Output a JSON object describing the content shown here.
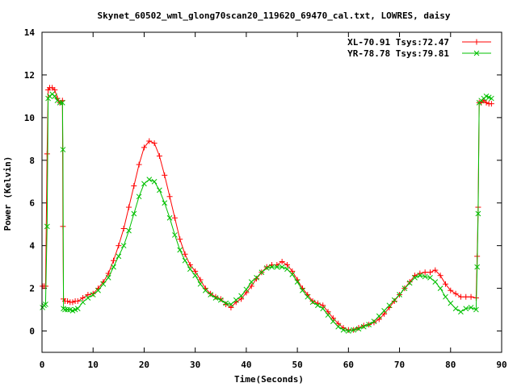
{
  "chart_data": {
    "type": "line",
    "title": "Skynet_60502_wml_glong70scan20_119620_69470_cal.txt, LOWRES, daisy",
    "xlabel": "Time(Seconds)",
    "ylabel": "Power (Kelvin)",
    "xlim": [
      0,
      90
    ],
    "ylim": [
      -1,
      14
    ],
    "xticks": [
      0,
      10,
      20,
      30,
      40,
      50,
      60,
      70,
      80,
      90
    ],
    "yticks": [
      0,
      2,
      4,
      6,
      8,
      10,
      12,
      14
    ],
    "grid": false,
    "legend_position": "top-right",
    "series": [
      {
        "name": "XL-70.91 Tsys:72.47",
        "color": "#ff0000",
        "marker": "plus",
        "points": [
          [
            0.1,
            2.1
          ],
          [
            0.4,
            2.1
          ],
          [
            0.7,
            2.1
          ],
          [
            1.0,
            8.3
          ],
          [
            1.2,
            11.3
          ],
          [
            1.5,
            11.4
          ],
          [
            2.0,
            11.4
          ],
          [
            2.5,
            11.3
          ],
          [
            3.0,
            10.9
          ],
          [
            3.5,
            10.7
          ],
          [
            4.0,
            10.8
          ],
          [
            4.1,
            4.9
          ],
          [
            4.2,
            1.5
          ],
          [
            4.5,
            1.4
          ],
          [
            5.0,
            1.4
          ],
          [
            5.5,
            1.35
          ],
          [
            6.0,
            1.35
          ],
          [
            6.5,
            1.4
          ],
          [
            7.0,
            1.4
          ],
          [
            8.0,
            1.55
          ],
          [
            9.0,
            1.7
          ],
          [
            10.0,
            1.75
          ],
          [
            11.0,
            2.0
          ],
          [
            12.0,
            2.3
          ],
          [
            13.0,
            2.7
          ],
          [
            14.0,
            3.3
          ],
          [
            15.0,
            4.0
          ],
          [
            16.0,
            4.8
          ],
          [
            17.0,
            5.8
          ],
          [
            18.0,
            6.8
          ],
          [
            19.0,
            7.8
          ],
          [
            20.0,
            8.6
          ],
          [
            21.0,
            8.9
          ],
          [
            22.0,
            8.8
          ],
          [
            23.0,
            8.2
          ],
          [
            24.0,
            7.3
          ],
          [
            25.0,
            6.3
          ],
          [
            26.0,
            5.3
          ],
          [
            27.0,
            4.3
          ],
          [
            28.0,
            3.6
          ],
          [
            29.0,
            3.1
          ],
          [
            30.0,
            2.8
          ],
          [
            31.0,
            2.4
          ],
          [
            32.0,
            2.0
          ],
          [
            33.0,
            1.75
          ],
          [
            34.0,
            1.6
          ],
          [
            35.0,
            1.5
          ],
          [
            36.0,
            1.25
          ],
          [
            37.0,
            1.1
          ],
          [
            38.0,
            1.35
          ],
          [
            39.0,
            1.5
          ],
          [
            40.0,
            1.8
          ],
          [
            41.0,
            2.1
          ],
          [
            42.0,
            2.45
          ],
          [
            43.0,
            2.75
          ],
          [
            44.0,
            3.0
          ],
          [
            45.0,
            3.1
          ],
          [
            46.0,
            3.1
          ],
          [
            47.0,
            3.25
          ],
          [
            48.0,
            3.1
          ],
          [
            49.0,
            2.8
          ],
          [
            50.0,
            2.4
          ],
          [
            51.0,
            2.0
          ],
          [
            52.0,
            1.7
          ],
          [
            53.0,
            1.4
          ],
          [
            54.0,
            1.3
          ],
          [
            55.0,
            1.2
          ],
          [
            56.0,
            0.9
          ],
          [
            57.0,
            0.6
          ],
          [
            58.0,
            0.35
          ],
          [
            59.0,
            0.15
          ],
          [
            60.0,
            0.05
          ],
          [
            61.0,
            0.05
          ],
          [
            62.0,
            0.15
          ],
          [
            63.0,
            0.25
          ],
          [
            64.0,
            0.3
          ],
          [
            65.0,
            0.4
          ],
          [
            66.0,
            0.55
          ],
          [
            67.0,
            0.8
          ],
          [
            68.0,
            1.1
          ],
          [
            69.0,
            1.4
          ],
          [
            70.0,
            1.7
          ],
          [
            71.0,
            2.0
          ],
          [
            72.0,
            2.3
          ],
          [
            73.0,
            2.6
          ],
          [
            74.0,
            2.7
          ],
          [
            75.0,
            2.75
          ],
          [
            76.0,
            2.75
          ],
          [
            77.0,
            2.85
          ],
          [
            78.0,
            2.6
          ],
          [
            79.0,
            2.2
          ],
          [
            80.0,
            1.9
          ],
          [
            81.0,
            1.75
          ],
          [
            82.0,
            1.6
          ],
          [
            83.0,
            1.6
          ],
          [
            84.0,
            1.6
          ],
          [
            85.0,
            1.55
          ],
          [
            85.2,
            3.5
          ],
          [
            85.4,
            5.8
          ],
          [
            85.6,
            10.7
          ],
          [
            86.0,
            10.7
          ],
          [
            86.5,
            10.8
          ],
          [
            87.0,
            10.7
          ],
          [
            87.5,
            10.65
          ],
          [
            88.0,
            10.65
          ]
        ]
      },
      {
        "name": "YR-78.78 Tsys:79.81",
        "color": "#00c000",
        "marker": "cross",
        "points": [
          [
            0.1,
            1.1
          ],
          [
            0.4,
            1.2
          ],
          [
            0.7,
            1.25
          ],
          [
            1.0,
            4.9
          ],
          [
            1.2,
            10.9
          ],
          [
            1.5,
            11.0
          ],
          [
            2.0,
            11.1
          ],
          [
            2.5,
            11.0
          ],
          [
            3.0,
            10.8
          ],
          [
            3.5,
            10.7
          ],
          [
            4.0,
            10.7
          ],
          [
            4.1,
            8.5
          ],
          [
            4.2,
            1.05
          ],
          [
            4.5,
            1.0
          ],
          [
            5.0,
            1.0
          ],
          [
            5.5,
            1.0
          ],
          [
            6.0,
            0.95
          ],
          [
            6.5,
            1.0
          ],
          [
            7.0,
            1.05
          ],
          [
            8.0,
            1.35
          ],
          [
            9.0,
            1.55
          ],
          [
            10.0,
            1.7
          ],
          [
            11.0,
            1.9
          ],
          [
            12.0,
            2.2
          ],
          [
            13.0,
            2.5
          ],
          [
            14.0,
            3.0
          ],
          [
            15.0,
            3.5
          ],
          [
            16.0,
            4.0
          ],
          [
            17.0,
            4.7
          ],
          [
            18.0,
            5.5
          ],
          [
            19.0,
            6.3
          ],
          [
            20.0,
            6.9
          ],
          [
            21.0,
            7.1
          ],
          [
            22.0,
            7.0
          ],
          [
            23.0,
            6.6
          ],
          [
            24.0,
            6.0
          ],
          [
            25.0,
            5.3
          ],
          [
            26.0,
            4.5
          ],
          [
            27.0,
            3.8
          ],
          [
            28.0,
            3.3
          ],
          [
            29.0,
            2.9
          ],
          [
            30.0,
            2.6
          ],
          [
            31.0,
            2.2
          ],
          [
            32.0,
            1.9
          ],
          [
            33.0,
            1.7
          ],
          [
            34.0,
            1.55
          ],
          [
            35.0,
            1.45
          ],
          [
            36.0,
            1.3
          ],
          [
            37.0,
            1.25
          ],
          [
            38.0,
            1.45
          ],
          [
            39.0,
            1.65
          ],
          [
            40.0,
            1.95
          ],
          [
            41.0,
            2.3
          ],
          [
            42.0,
            2.5
          ],
          [
            43.0,
            2.75
          ],
          [
            44.0,
            2.95
          ],
          [
            45.0,
            3.0
          ],
          [
            46.0,
            3.0
          ],
          [
            47.0,
            3.0
          ],
          [
            48.0,
            2.9
          ],
          [
            49.0,
            2.65
          ],
          [
            50.0,
            2.3
          ],
          [
            51.0,
            1.9
          ],
          [
            52.0,
            1.6
          ],
          [
            53.0,
            1.35
          ],
          [
            54.0,
            1.2
          ],
          [
            55.0,
            1.05
          ],
          [
            56.0,
            0.75
          ],
          [
            57.0,
            0.45
          ],
          [
            58.0,
            0.2
          ],
          [
            59.0,
            0.05
          ],
          [
            60.0,
            0.0
          ],
          [
            61.0,
            0.05
          ],
          [
            62.0,
            0.1
          ],
          [
            63.0,
            0.2
          ],
          [
            64.0,
            0.3
          ],
          [
            65.0,
            0.45
          ],
          [
            66.0,
            0.7
          ],
          [
            67.0,
            0.95
          ],
          [
            68.0,
            1.2
          ],
          [
            69.0,
            1.45
          ],
          [
            70.0,
            1.7
          ],
          [
            71.0,
            2.0
          ],
          [
            72.0,
            2.25
          ],
          [
            73.0,
            2.5
          ],
          [
            74.0,
            2.6
          ],
          [
            75.0,
            2.55
          ],
          [
            76.0,
            2.5
          ],
          [
            77.0,
            2.3
          ],
          [
            78.0,
            2.0
          ],
          [
            79.0,
            1.6
          ],
          [
            80.0,
            1.3
          ],
          [
            81.0,
            1.05
          ],
          [
            82.0,
            0.9
          ],
          [
            83.0,
            1.05
          ],
          [
            84.0,
            1.1
          ],
          [
            85.0,
            1.0
          ],
          [
            85.2,
            3.0
          ],
          [
            85.4,
            5.5
          ],
          [
            85.6,
            10.7
          ],
          [
            86.0,
            10.8
          ],
          [
            86.5,
            10.9
          ],
          [
            87.0,
            11.0
          ],
          [
            87.5,
            10.95
          ],
          [
            88.0,
            10.9
          ]
        ]
      }
    ]
  }
}
